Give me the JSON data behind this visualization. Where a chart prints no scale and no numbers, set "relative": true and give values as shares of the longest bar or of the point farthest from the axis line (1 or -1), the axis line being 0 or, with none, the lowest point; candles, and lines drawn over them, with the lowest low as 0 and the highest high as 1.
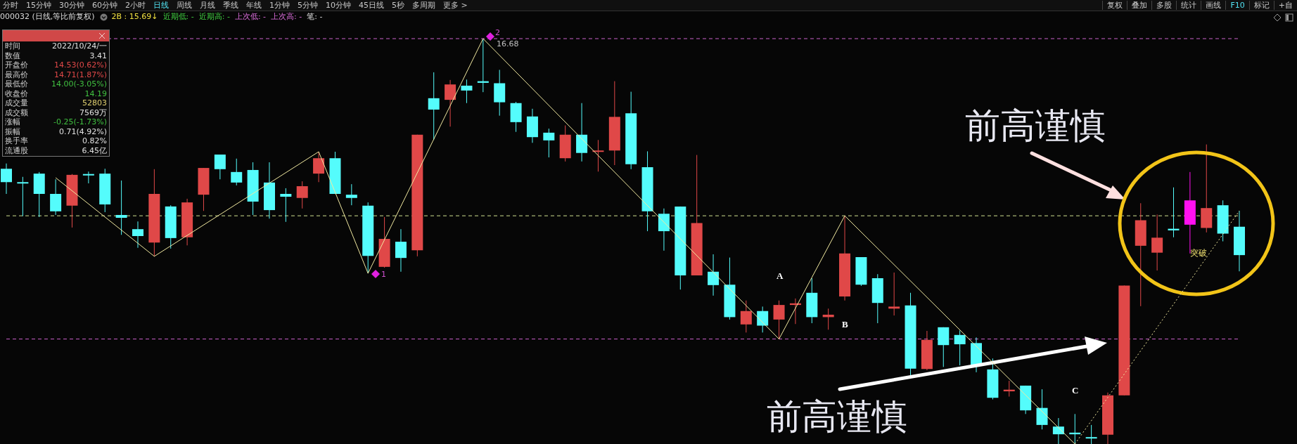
{
  "chart_data": [
    {
      "type": "candlestick",
      "relative": true,
      "subtitle": "000032 (日线,等比前复权)  2B : 15.69↓  近期低: -  近期高: -  上次低: -  上次高: -  笔: -",
      "categories": [
        null,
        null,
        null,
        null,
        null,
        null,
        null,
        null,
        null,
        null,
        null,
        null,
        null,
        null,
        null,
        null,
        null,
        null,
        null,
        null,
        null,
        null,
        null,
        null,
        null,
        null,
        null,
        null,
        null,
        null,
        null,
        null,
        null,
        null,
        null,
        null,
        null,
        null,
        null,
        null,
        null,
        null,
        null,
        null,
        null,
        null,
        null,
        null,
        null,
        null,
        null,
        null,
        null,
        null,
        null,
        null,
        null,
        null,
        null,
        null,
        null,
        null,
        null,
        null,
        null,
        null,
        null,
        null,
        null,
        null,
        null,
        null,
        null,
        null,
        null,
        null
      ],
      "ohlc": [
        [
          0.679,
          0.692,
          0.617,
          0.646
        ],
        [
          0.646,
          0.659,
          0.562,
          0.646
        ],
        [
          0.667,
          0.671,
          0.56,
          0.617
        ],
        [
          0.617,
          0.653,
          0.565,
          0.574
        ],
        [
          0.588,
          0.666,
          0.534,
          0.664
        ],
        [
          0.666,
          0.672,
          0.643,
          0.664
        ],
        [
          0.667,
          0.679,
          0.572,
          0.591
        ],
        [
          0.565,
          0.65,
          0.516,
          0.558
        ],
        [
          0.53,
          0.549,
          0.484,
          0.513
        ],
        [
          0.497,
          0.678,
          0.463,
          0.617
        ],
        [
          0.586,
          0.589,
          0.482,
          0.508
        ],
        [
          0.51,
          0.605,
          0.49,
          0.596
        ],
        [
          0.615,
          0.681,
          0.575,
          0.681
        ],
        [
          0.714,
          0.714,
          0.653,
          0.678
        ],
        [
          0.671,
          0.704,
          0.638,
          0.645
        ],
        [
          0.676,
          0.695,
          0.565,
          0.598
        ],
        [
          0.645,
          0.695,
          0.556,
          0.577
        ],
        [
          0.617,
          0.631,
          0.548,
          0.61
        ],
        [
          0.607,
          0.648,
          0.581,
          0.636
        ],
        [
          0.667,
          0.721,
          0.646,
          0.705
        ],
        [
          0.705,
          0.721,
          0.617,
          0.617
        ],
        [
          0.615,
          0.641,
          0.589,
          0.607
        ],
        [
          0.588,
          0.596,
          0.421,
          0.464
        ],
        [
          0.437,
          0.56,
          0.435,
          0.506
        ],
        [
          0.499,
          0.53,
          0.425,
          0.459
        ],
        [
          0.478,
          0.763,
          0.463,
          0.763
        ],
        [
          0.853,
          0.917,
          0.75,
          0.825
        ],
        [
          0.849,
          0.898,
          0.783,
          0.887
        ],
        [
          0.884,
          0.899,
          0.841,
          0.872
        ],
        [
          0.895,
          1,
          0.868,
          0.891
        ],
        [
          0.89,
          0.923,
          0.81,
          0.843
        ],
        [
          0.841,
          0.844,
          0.77,
          0.794
        ],
        [
          0.808,
          0.827,
          0.743,
          0.757
        ],
        [
          0.768,
          0.778,
          0.707,
          0.749
        ],
        [
          0.705,
          0.786,
          0.697,
          0.763
        ],
        [
          0.763,
          0.841,
          0.697,
          0.718
        ],
        [
          0.721,
          0.75,
          0.672,
          0.724
        ],
        [
          0.724,
          0.895,
          0.688,
          0.807
        ],
        [
          0.816,
          0.869,
          0.678,
          0.69
        ],
        [
          0.683,
          0.722,
          0.525,
          0.574
        ],
        [
          0.568,
          0.581,
          0.477,
          0.525
        ],
        [
          0.586,
          0.586,
          0.381,
          0.416
        ],
        [
          0.416,
          0.713,
          0.416,
          0.545
        ],
        [
          0.425,
          0.468,
          0.366,
          0.392
        ],
        [
          0.393,
          0.46,
          0.307,
          0.313
        ],
        [
          0.295,
          0.354,
          0.275,
          0.328
        ],
        [
          0.328,
          0.339,
          0.275,
          0.292
        ],
        [
          0.307,
          0.354,
          0.259,
          0.343
        ],
        [
          0.343,
          0.359,
          0.296,
          0.347
        ],
        [
          0.373,
          0.409,
          0.298,
          0.313
        ],
        [
          0.313,
          0.334,
          0.282,
          0.319
        ],
        [
          0.364,
          0.563,
          0.354,
          0.47
        ],
        [
          0.461,
          0.461,
          0.39,
          0.393
        ],
        [
          0.409,
          0.419,
          0.298,
          0.348
        ],
        [
          0.334,
          0.423,
          0.317,
          0.339
        ],
        [
          0.342,
          0.373,
          0.167,
          0.186
        ],
        [
          0.185,
          0.279,
          0.182,
          0.257
        ],
        [
          0.288,
          0.288,
          0.19,
          0.244
        ],
        [
          0.269,
          0.28,
          0.194,
          0.246
        ],
        [
          0.249,
          0.263,
          0.177,
          0.195
        ],
        [
          0.184,
          0.211,
          0.11,
          0.114
        ],
        [
          0.13,
          0.156,
          0.117,
          0.134
        ],
        [
          0.144,
          0.144,
          0.074,
          0.083
        ],
        [
          0.089,
          0.135,
          0.036,
          0.047
        ],
        [
          0.043,
          0.064,
          0,
          0.024
        ],
        [
          0.028,
          0.074,
          0,
          0.024
        ],
        [
          0.017,
          0.047,
          0,
          0.014
        ],
        [
          0.023,
          0.127,
          0,
          0.12
        ],
        [
          0.12,
          0.391,
          0.12,
          0.391
        ],
        [
          0.489,
          0.594,
          0.34,
          0.552
        ],
        [
          0.472,
          0.566,
          0.428,
          0.509
        ],
        [
          0.531,
          0.633,
          0.51,
          0.527
        ],
        [
          0.601,
          0.671,
          0.47,
          0.541
        ],
        [
          0.533,
          0.739,
          0.522,
          0.582
        ],
        [
          0.589,
          0.601,
          0.5,
          0.519
        ],
        [
          0.536,
          0.575,
          0.426,
          0.466
        ]
      ],
      "colors": [
        "#54fcfc",
        "#54fcfc",
        "#54fcfc",
        "#54fcfc",
        "#e04848",
        "#54fcfc",
        "#54fcfc",
        "#54fcfc",
        "#54fcfc",
        "#e04848",
        "#54fcfc",
        "#e04848",
        "#e04848",
        "#54fcfc",
        "#54fcfc",
        "#54fcfc",
        "#54fcfc",
        "#54fcfc",
        "#e04848",
        "#e04848",
        "#54fcfc",
        "#54fcfc",
        "#54fcfc",
        "#e04848",
        "#54fcfc",
        "#e04848",
        "#54fcfc",
        "#e04848",
        "#54fcfc",
        "#54fcfc",
        "#54fcfc",
        "#54fcfc",
        "#54fcfc",
        "#54fcfc",
        "#e04848",
        "#54fcfc",
        "#e04848",
        "#e04848",
        "#54fcfc",
        "#54fcfc",
        "#54fcfc",
        "#54fcfc",
        "#e04848",
        "#54fcfc",
        "#54fcfc",
        "#e04848",
        "#54fcfc",
        "#e04848",
        "#e04848",
        "#54fcfc",
        "#e04848",
        "#e04848",
        "#54fcfc",
        "#54fcfc",
        "#e04848",
        "#54fcfc",
        "#e04848",
        "#54fcfc",
        "#54fcfc",
        "#54fcfc",
        "#54fcfc",
        "#e04848",
        "#54fcfc",
        "#54fcfc",
        "#54fcfc",
        "#54fcfc",
        "#54fcfc",
        "#e04848",
        "#e04848",
        "#e04848",
        "#e04848",
        "#54fcfc",
        "#ff10f0",
        "#e04848",
        "#54fcfc",
        "#54fcfc"
      ],
      "ref_lines": [
        {
          "axis": "y",
          "value": 1,
          "color": "#c860c8",
          "line_style": "dashed"
        },
        {
          "axis": "y",
          "value": 0.259,
          "color": "#c860c8",
          "line_style": "dashed"
        },
        {
          "axis": "y",
          "value": 0.563,
          "color": "#d0e090",
          "line_style": "dashed"
        }
      ],
      "annotations": [
        "分时  15分钟  30分钟  60分钟  2小时  日线  周线  月线  季线  年线  1分钟  5分钟  10分钟  45日线  5秒  多周期  更多 >",
        "复权  叠加  多股  统计  画线  F10  标记  +自",
        "前高谨慎",
        "前高谨慎",
        "16.68",
        "1",
        "2",
        "A",
        "B",
        "C",
        "突破",
        "时间",
        "2022/10/24/一",
        "数值",
        "3.41",
        "开盘价",
        "14.53(0.62%)",
        "最高价",
        "14.71(1.87%)",
        "最低价",
        "14.00(-3.05%)",
        "收盘价",
        "14.19",
        "成交量",
        "52803",
        "成交额",
        "7569万",
        "涨幅",
        "-0.25(-1.73%)",
        "振幅",
        "0.71(4.92%)",
        "换手率",
        "0.82%",
        "流通股",
        "6.45亿"
      ]
    },
    {
      "type": "line",
      "relative": true,
      "categories": [
        null,
        null,
        null,
        null,
        null,
        null,
        null,
        null,
        null,
        null,
        null,
        null,
        null,
        null,
        null,
        null,
        null,
        null,
        null,
        null,
        null,
        null,
        null,
        null,
        null,
        null,
        null,
        null,
        null,
        null,
        null,
        null,
        null,
        null,
        null,
        null,
        null,
        null,
        null,
        null,
        null,
        null,
        null,
        null,
        null,
        null,
        null,
        null,
        null,
        null,
        null,
        null,
        null,
        null,
        null,
        null,
        null,
        null,
        null,
        null,
        null,
        null,
        null,
        null,
        null,
        null,
        null,
        null,
        null,
        null,
        null,
        null,
        null,
        null,
        null,
        null
      ],
      "series": [
        {
          "color": "#f0e8a0",
          "line_style": "solid",
          "values": [
            null,
            null,
            null,
            0.657,
            null,
            null,
            null,
            null,
            null,
            0.463,
            null,
            null,
            null,
            null,
            null,
            null,
            null,
            null,
            null,
            0.721,
            null,
            null,
            0.421,
            null,
            null,
            null,
            null,
            null,
            null,
            1,
            null,
            null,
            null,
            null,
            null,
            null,
            null,
            null,
            null,
            null,
            null,
            null,
            null,
            null,
            null,
            null,
            null,
            0.259,
            null,
            null,
            null,
            0.563,
            null,
            null,
            null,
            null,
            null,
            null,
            null,
            null,
            null,
            null,
            null,
            null,
            null,
            0,
            null,
            null,
            null,
            null,
            null,
            null,
            null,
            null,
            null,
            null
          ]
        },
        {
          "color": "#f0e8a0",
          "line_style": "dotted",
          "values": [
            null,
            null,
            null,
            null,
            null,
            null,
            null,
            null,
            null,
            null,
            null,
            null,
            null,
            null,
            null,
            null,
            null,
            null,
            null,
            null,
            null,
            null,
            null,
            null,
            null,
            null,
            null,
            null,
            null,
            null,
            null,
            null,
            null,
            null,
            null,
            null,
            null,
            null,
            null,
            null,
            null,
            null,
            null,
            null,
            null,
            null,
            null,
            null,
            null,
            null,
            null,
            null,
            null,
            null,
            null,
            null,
            null,
            null,
            null,
            null,
            null,
            null,
            null,
            null,
            null,
            0,
            null,
            null,
            null,
            null,
            null,
            null,
            null,
            null,
            null,
            0.575
          ]
        }
      ]
    }
  ]
}
